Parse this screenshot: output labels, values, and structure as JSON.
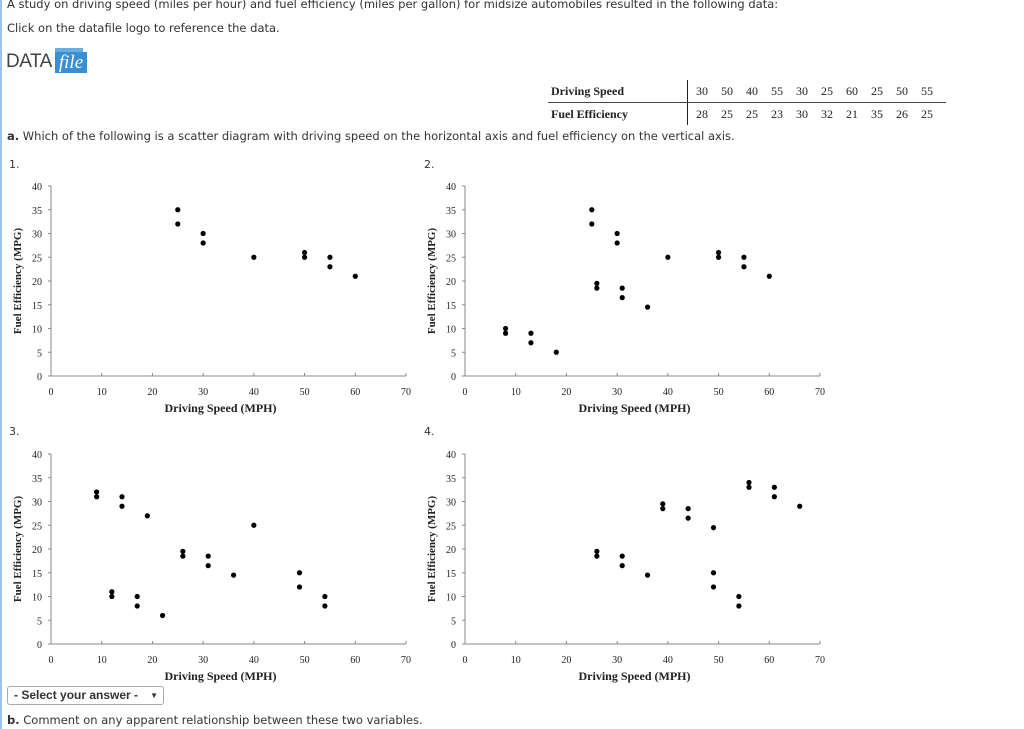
{
  "intro": "A study on driving speed (miles per hour) and fuel efficiency (miles per gallon) for midsize automobiles resulted in the following data:",
  "instruction": "Click on the datafile logo to reference the data.",
  "logo": {
    "text_a": "DATA",
    "text_b": "file",
    "color": "#3b8fd0"
  },
  "data_table": {
    "rows": [
      {
        "label": "Driving Speed",
        "values": [
          "30",
          "50",
          "40",
          "55",
          "30",
          "25",
          "60",
          "25",
          "50",
          "55"
        ]
      },
      {
        "label": "Fuel Efficiency",
        "values": [
          "28",
          "25",
          "25",
          "23",
          "30",
          "32",
          "21",
          "35",
          "26",
          "25"
        ]
      }
    ]
  },
  "question_a": {
    "label": "a.",
    "text": "Which of the following is a scatter diagram with driving speed on the horizontal axis and fuel efficiency on the vertical axis."
  },
  "option_numbers": [
    "1.",
    "2.",
    "3.",
    "4."
  ],
  "answer_select": {
    "value": "- Select your answer -",
    "arrow": "▼"
  },
  "question_b": {
    "label": "b.",
    "text": "Comment on any apparent relationship between these two variables."
  },
  "chart_data": [
    {
      "type": "scatter",
      "xlabel": "Driving Speed (MPH)",
      "ylabel": "Fuel Efficiency (MPG)",
      "xlim": [
        0,
        70
      ],
      "ylim": [
        0,
        40
      ],
      "xticks": [
        0,
        10,
        20,
        30,
        40,
        50,
        60,
        70
      ],
      "yticks": [
        0,
        5,
        10,
        15,
        20,
        25,
        30,
        35,
        40
      ],
      "grid": false,
      "x": [
        30,
        50,
        40,
        55,
        30,
        25,
        60,
        25,
        50,
        55
      ],
      "y": [
        28,
        25,
        25,
        23,
        30,
        32,
        21,
        35,
        26,
        25
      ]
    },
    {
      "type": "scatter",
      "xlabel": "Driving Speed (MPH)",
      "ylabel": "Fuel Efficiency (MPG)",
      "xlim": [
        0,
        70
      ],
      "ylim": [
        0,
        40
      ],
      "xticks": [
        0,
        10,
        20,
        30,
        40,
        50,
        60,
        70
      ],
      "yticks": [
        0,
        5,
        10,
        15,
        20,
        25,
        30,
        35,
        40
      ],
      "grid": false,
      "x": [
        25,
        25,
        30,
        30,
        40,
        50,
        50,
        55,
        55,
        60,
        26,
        26,
        31,
        31,
        36,
        8,
        8,
        13,
        13,
        18
      ],
      "y": [
        35,
        32,
        30,
        28,
        25,
        26,
        25,
        25,
        23,
        21,
        19.5,
        18.5,
        18.5,
        16.5,
        14.5,
        10,
        9,
        9,
        7,
        5
      ]
    },
    {
      "type": "scatter",
      "xlabel": "Driving Speed (MPH)",
      "ylabel": "Fuel Efficiency (MPG)",
      "xlim": [
        0,
        70
      ],
      "ylim": [
        0,
        40
      ],
      "xticks": [
        0,
        10,
        20,
        30,
        40,
        50,
        60,
        70
      ],
      "yticks": [
        0,
        5,
        10,
        15,
        20,
        25,
        30,
        35,
        40
      ],
      "grid": false,
      "x": [
        9,
        9,
        14,
        14,
        19,
        40,
        26,
        26,
        31,
        31,
        36,
        12,
        12,
        17,
        17,
        22,
        49,
        49,
        54,
        54
      ],
      "y": [
        32,
        31,
        31,
        29,
        27,
        25,
        19.5,
        18.5,
        18.5,
        16.5,
        14.5,
        11,
        10,
        10,
        8,
        6,
        15,
        12,
        10,
        8
      ]
    },
    {
      "type": "scatter",
      "xlabel": "Driving Speed (MPH)",
      "ylabel": "Fuel Efficiency (MPG)",
      "xlim": [
        0,
        70
      ],
      "ylim": [
        0,
        40
      ],
      "xticks": [
        0,
        10,
        20,
        30,
        40,
        50,
        60,
        70
      ],
      "yticks": [
        0,
        5,
        10,
        15,
        20,
        25,
        30,
        35,
        40
      ],
      "grid": false,
      "x": [
        26,
        26,
        31,
        31,
        36,
        39,
        39,
        44,
        44,
        49,
        49,
        49,
        54,
        54,
        56,
        56,
        61,
        61,
        66
      ],
      "y": [
        19.5,
        18.5,
        18.5,
        16.5,
        14.5,
        29.5,
        28.5,
        28.5,
        26.5,
        24.5,
        15,
        12,
        10,
        8,
        34,
        33,
        33,
        31,
        29
      ]
    }
  ]
}
